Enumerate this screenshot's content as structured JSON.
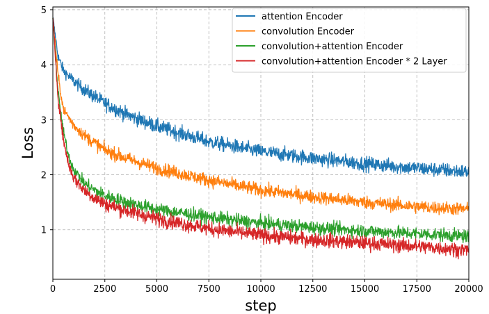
{
  "chart_data": {
    "type": "line",
    "title": "",
    "xlabel": "step",
    "ylabel": "Loss",
    "xlim": [
      0,
      20000
    ],
    "ylim": [
      0.1,
      5.05
    ],
    "xticks": [
      0,
      2500,
      5000,
      7500,
      10000,
      12500,
      15000,
      17500,
      20000
    ],
    "yticks": [
      1,
      2,
      3,
      4,
      5
    ],
    "grid": true,
    "legend_position": "top-right",
    "series": [
      {
        "name": "attention Encoder",
        "color": "#1f77b4",
        "noise": 0.055,
        "x": [
          0,
          250,
          500,
          1000,
          1500,
          2000,
          2500,
          3500,
          5000,
          7500,
          10000,
          12500,
          15000,
          17500,
          20000
        ],
        "y": [
          4.85,
          4.15,
          3.9,
          3.7,
          3.55,
          3.42,
          3.3,
          3.1,
          2.88,
          2.6,
          2.42,
          2.3,
          2.2,
          2.12,
          2.05
        ]
      },
      {
        "name": "convolution Encoder",
        "color": "#ff7f0e",
        "noise": 0.05,
        "x": [
          0,
          250,
          500,
          1000,
          1500,
          2000,
          2500,
          3500,
          5000,
          7500,
          10000,
          12500,
          15000,
          17500,
          20000
        ],
        "y": [
          4.85,
          3.8,
          3.2,
          2.9,
          2.72,
          2.58,
          2.45,
          2.3,
          2.12,
          1.9,
          1.72,
          1.6,
          1.5,
          1.42,
          1.37
        ]
      },
      {
        "name": "convolution+attention Encoder",
        "color": "#2ca02c",
        "noise": 0.05,
        "x": [
          0,
          250,
          500,
          750,
          1000,
          1500,
          2000,
          2500,
          3500,
          5000,
          7500,
          10000,
          12500,
          15000,
          17500,
          20000
        ],
        "y": [
          4.85,
          3.5,
          2.8,
          2.35,
          2.1,
          1.85,
          1.72,
          1.62,
          1.5,
          1.37,
          1.23,
          1.12,
          1.04,
          0.98,
          0.93,
          0.88
        ]
      },
      {
        "name": "convolution+attention Encoder * 2 Layer",
        "color": "#d62728",
        "noise": 0.055,
        "x": [
          0,
          250,
          500,
          750,
          1000,
          1500,
          2000,
          2500,
          3500,
          5000,
          7500,
          10000,
          12500,
          15000,
          17500,
          20000
        ],
        "y": [
          4.85,
          3.4,
          2.65,
          2.2,
          1.95,
          1.72,
          1.58,
          1.47,
          1.35,
          1.2,
          1.02,
          0.9,
          0.82,
          0.76,
          0.7,
          0.63
        ]
      }
    ]
  }
}
